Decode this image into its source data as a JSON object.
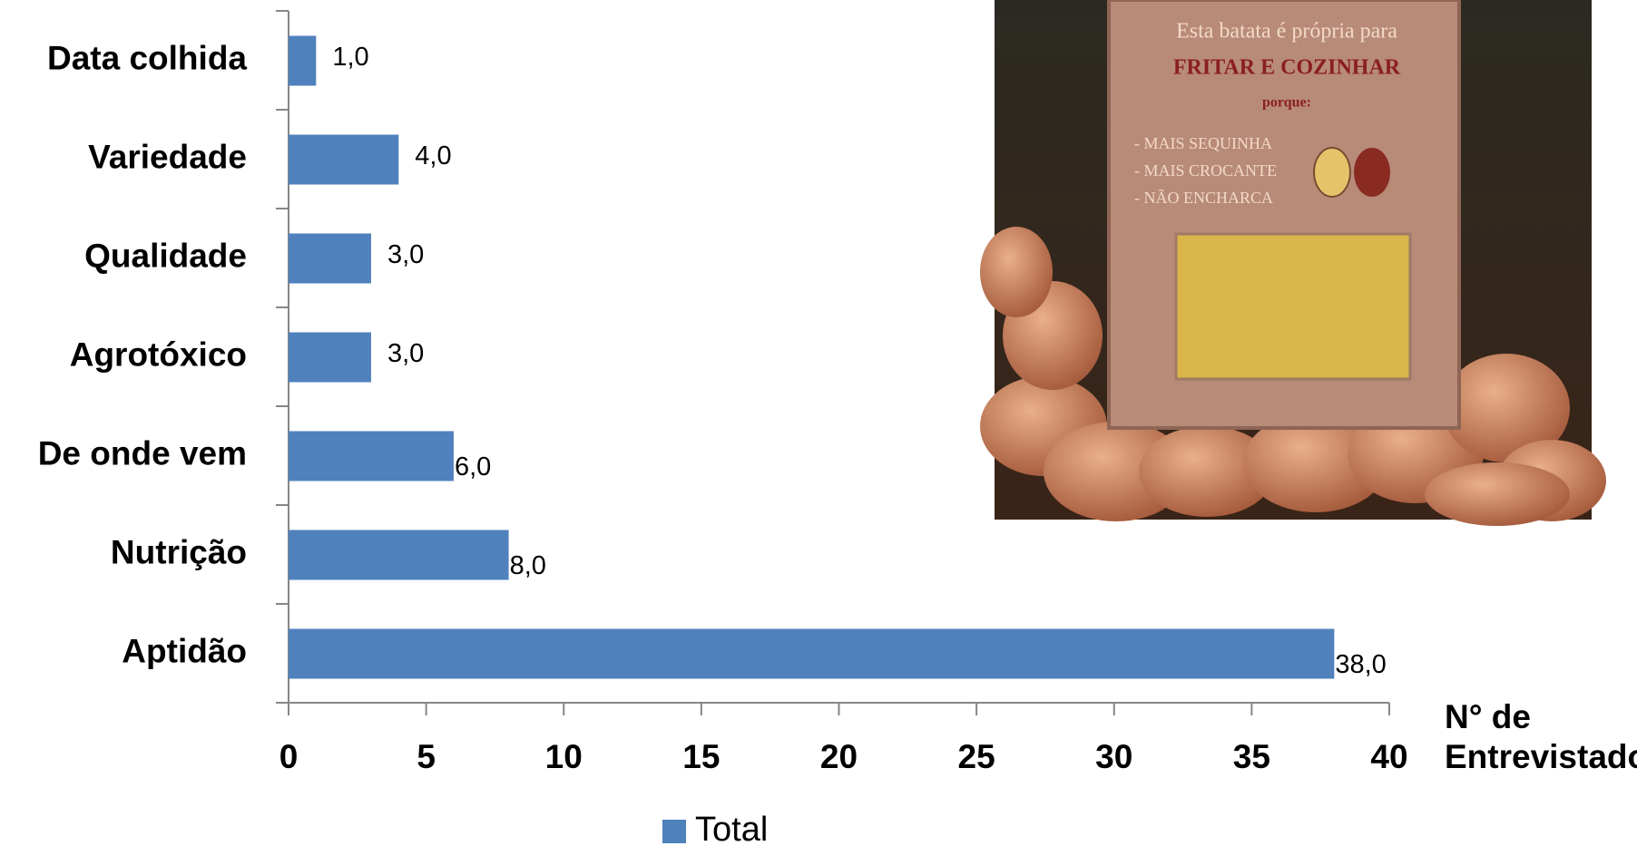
{
  "chart_data": {
    "type": "bar",
    "orientation": "horizontal",
    "categories": [
      "Data colhida",
      "Variedade",
      "Qualidade",
      "Agrotóxico",
      "De onde vem",
      "Nutrição",
      "Aptidão"
    ],
    "series": [
      {
        "name": "Total",
        "color": "#4f81bd",
        "values": [
          1,
          4,
          3,
          3,
          6,
          8,
          38
        ],
        "value_labels": [
          "1,0",
          "4,0",
          "3,0",
          "3,0",
          "6,0",
          "8,0",
          "38,0"
        ]
      }
    ],
    "xlabel": [
      "N° de",
      "Entrevistados"
    ],
    "xlim": [
      0,
      40
    ],
    "xticks": [
      0,
      5,
      10,
      15,
      20,
      25,
      30,
      35,
      40
    ],
    "legend": "bottom"
  },
  "photo": {
    "sign_lines": [
      "Esta batata é própria para",
      "FRITAR E COZINHAR",
      "porque:",
      "- MAIS SEQUINHA",
      "- MAIS CROCANTE",
      "- NÃO ENCHARCA"
    ]
  }
}
